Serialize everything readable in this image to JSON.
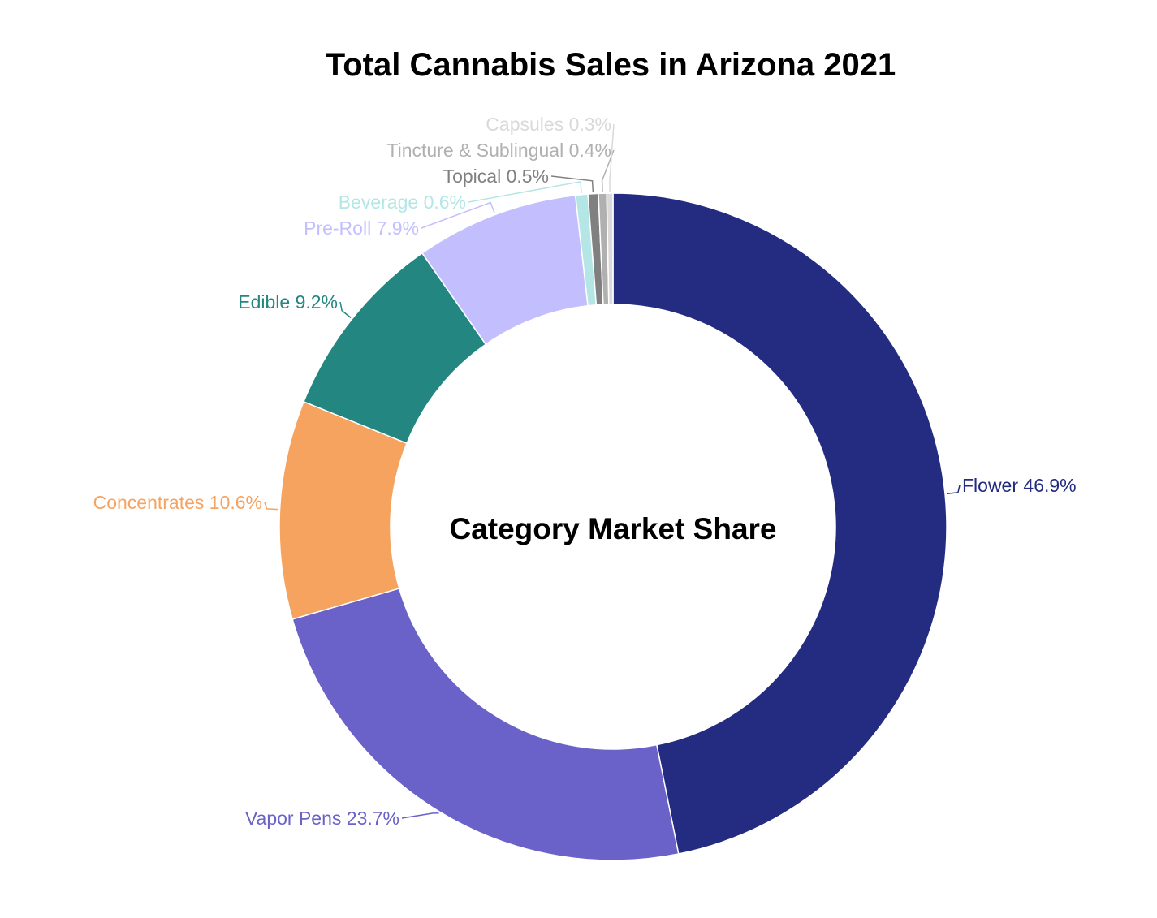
{
  "chart_data": {
    "type": "pie",
    "title": "Total Cannabis Sales in Arizona 2021",
    "center_label": "Category Market Share",
    "slices": [
      {
        "label": "Flower",
        "value": 46.9,
        "display": "Flower 46.9%",
        "color": "#232c80"
      },
      {
        "label": "Vapor Pens",
        "value": 23.7,
        "display": "Vapor Pens 23.7%",
        "color": "#6a62c8"
      },
      {
        "label": "Concentrates",
        "value": 10.6,
        "display": "Concentrates 10.6%",
        "color": "#f6a360"
      },
      {
        "label": "Edible",
        "value": 9.2,
        "display": "Edible 9.2%",
        "color": "#248680"
      },
      {
        "label": "Pre-Roll",
        "value": 7.9,
        "display": "Pre-Roll 7.9%",
        "color": "#c3bfff"
      },
      {
        "label": "Beverage",
        "value": 0.6,
        "display": "Beverage 0.6%",
        "color": "#b3e6e4"
      },
      {
        "label": "Topical",
        "value": 0.5,
        "display": "Topical 0.5%",
        "color": "#808080"
      },
      {
        "label": "Tincture & Sublingual",
        "value": 0.4,
        "display": "Tincture & Sublingual 0.4%",
        "color": "#b0b0b0"
      },
      {
        "label": "Capsules",
        "value": 0.3,
        "display": "Capsules 0.3%",
        "color": "#d9d9d9"
      }
    ]
  }
}
